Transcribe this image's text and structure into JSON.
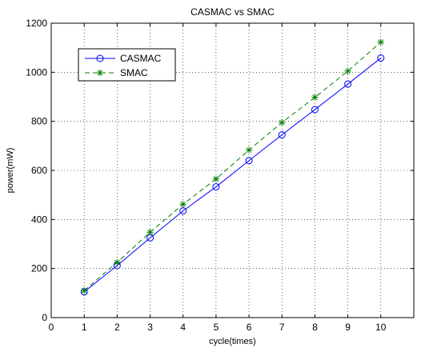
{
  "chart_data": {
    "type": "line",
    "title": "CASMAC vs SMAC",
    "xlabel": "cycle(times)",
    "ylabel": "power(mW)",
    "xlim": [
      0,
      11
    ],
    "ylim": [
      0,
      1200
    ],
    "xticks": [
      0,
      1,
      2,
      3,
      4,
      5,
      6,
      7,
      8,
      9,
      10
    ],
    "yticks": [
      0,
      200,
      400,
      600,
      800,
      1000,
      1200
    ],
    "grid": true,
    "legend_position": "top-left",
    "x": [
      1,
      2,
      3,
      4,
      5,
      6,
      7,
      8,
      9,
      10
    ],
    "series": [
      {
        "name": "CASMAC",
        "values": [
          105,
          212,
          325,
          435,
          533,
          640,
          745,
          848,
          952,
          1058
        ],
        "color": "#0000ff",
        "line_style": "solid",
        "marker": "circle"
      },
      {
        "name": "SMAC",
        "values": [
          110,
          225,
          348,
          462,
          565,
          683,
          795,
          898,
          1005,
          1123
        ],
        "color": "#008000",
        "line_style": "dashed",
        "marker": "asterisk"
      }
    ]
  }
}
